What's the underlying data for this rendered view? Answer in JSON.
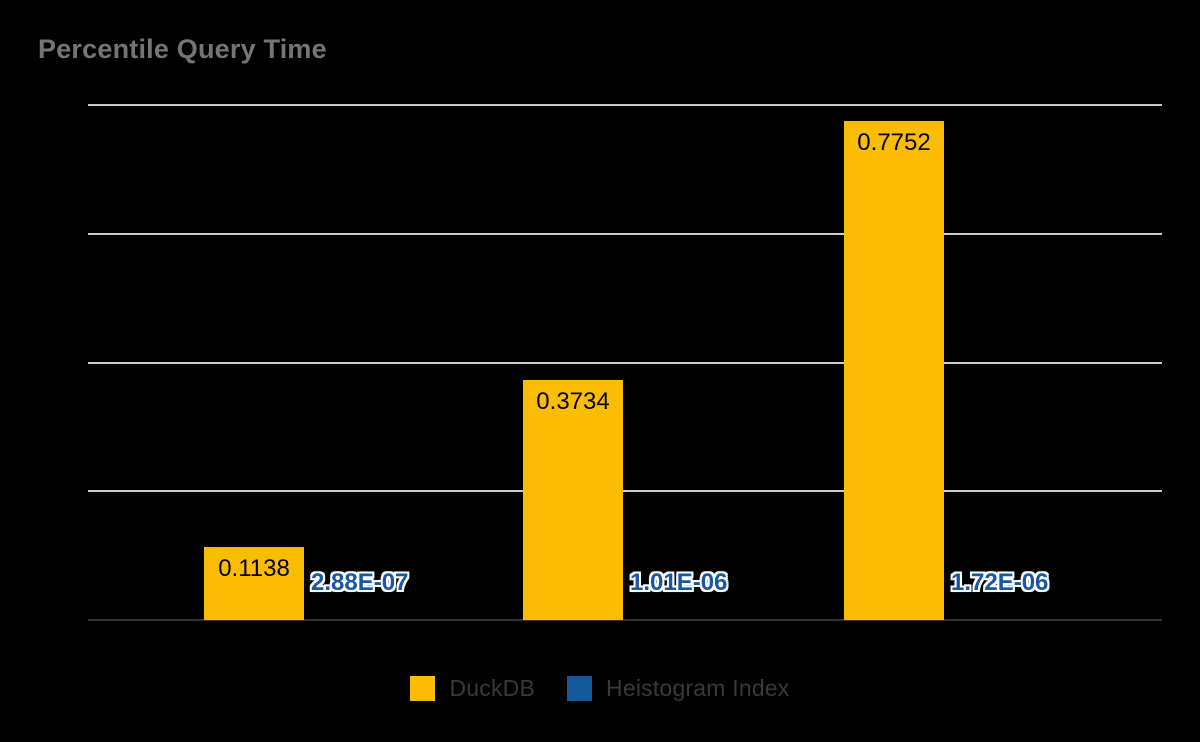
{
  "page": {
    "background": "#000000"
  },
  "chart_data": {
    "type": "bar",
    "title": "Percentile Query Time",
    "title_color": "#757575",
    "categories": [
      "",
      "",
      ""
    ],
    "series": [
      {
        "name": "DuckDB",
        "color": "#fbbc04",
        "values": [
          0.1138,
          0.3734,
          0.7752
        ],
        "data_labels": [
          "0.1138",
          "0.3734",
          "0.7752"
        ],
        "data_label_color": "#000000"
      },
      {
        "name": "Heistogram Index",
        "color": "#15599c",
        "values": [
          2.88e-07,
          1.01e-06,
          1.72e-06
        ],
        "data_labels": [
          "2.88E-07",
          "1.01E-06",
          "1.72E-06"
        ],
        "data_label_color": "#1757a6",
        "data_label_halo": "#ffffff"
      }
    ],
    "xlabel": "",
    "ylabel": "",
    "ylim": [
      0,
      0.8
    ],
    "gridline_values": [
      0,
      0.2,
      0.4,
      0.6,
      0.8
    ],
    "gridline_color": "#cccccc",
    "baseline_color": "#333333",
    "x_axis_labels_visible": false,
    "y_axis_labels_visible": false,
    "legend_position": "bottom",
    "legend_text_color": "#37393c",
    "grid": true
  }
}
